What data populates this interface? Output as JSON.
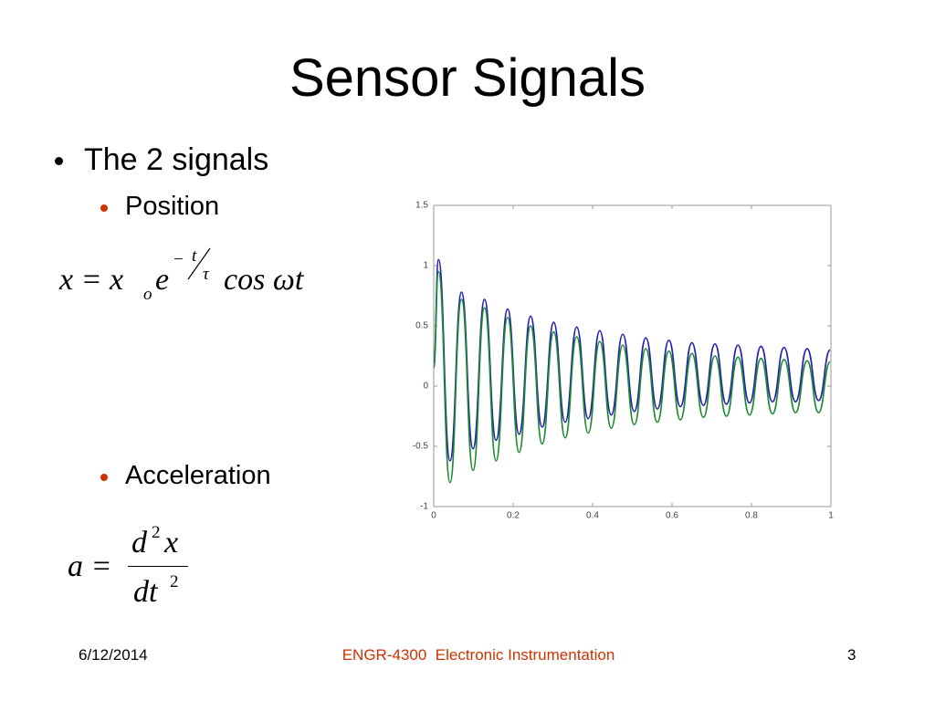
{
  "title": "Sensor Signals",
  "bullet": "The 2 signals",
  "sub_bullets": [
    "Position",
    "Acceleration"
  ],
  "position_equation": [
    "x = x",
    "o",
    "e",
    "−",
    "t",
    "τ",
    "cos ωt"
  ],
  "acceleration_equation": [
    "a =",
    "d",
    "2",
    "x",
    "dt",
    "2"
  ],
  "footer": {
    "date": "6/12/2014",
    "course": "ENGR-4300  Electronic Instrumentation",
    "page": "3"
  },
  "chart_data": {
    "type": "line",
    "x": [
      0,
      0.012,
      0.041,
      0.07,
      0.099,
      0.128,
      0.157,
      0.186,
      0.215,
      0.244,
      0.273,
      0.302,
      0.331,
      0.36,
      0.389,
      0.418,
      0.447,
      0.476,
      0.505,
      0.534,
      0.563,
      0.592,
      0.621,
      0.65,
      0.679,
      0.708,
      0.737,
      0.766,
      0.795,
      0.824,
      0.853,
      0.882,
      0.911,
      0.94,
      0.969,
      0.998
    ],
    "series": [
      {
        "color": "#1f1fb4",
        "values": [
          0.2,
          1.05,
          -0.62,
          0.78,
          -0.52,
          0.72,
          -0.45,
          0.64,
          -0.4,
          0.58,
          -0.34,
          0.53,
          -0.3,
          0.49,
          -0.27,
          0.46,
          -0.24,
          0.43,
          -0.21,
          0.4,
          -0.19,
          0.38,
          -0.17,
          0.36,
          -0.16,
          0.35,
          -0.15,
          0.34,
          -0.14,
          0.33,
          -0.13,
          0.32,
          -0.13,
          0.31,
          -0.12,
          0.3
        ]
      },
      {
        "color": "#1e8a2e",
        "values": [
          0.15,
          0.95,
          -0.8,
          0.72,
          -0.7,
          0.65,
          -0.62,
          0.57,
          -0.55,
          0.5,
          -0.48,
          0.45,
          -0.43,
          0.41,
          -0.39,
          0.37,
          -0.35,
          0.34,
          -0.32,
          0.31,
          -0.3,
          0.29,
          -0.28,
          0.27,
          -0.26,
          0.25,
          -0.25,
          0.24,
          -0.24,
          0.23,
          -0.23,
          0.22,
          -0.22,
          0.21,
          -0.22,
          0.2
        ]
      }
    ],
    "xlim": [
      0,
      1
    ],
    "xticks": [
      0,
      0.2,
      0.4,
      0.6,
      0.8,
      1
    ],
    "ylim": [
      -1,
      1.5
    ],
    "yticks": [
      -1,
      -0.5,
      0,
      0.5,
      1,
      1.5
    ]
  }
}
